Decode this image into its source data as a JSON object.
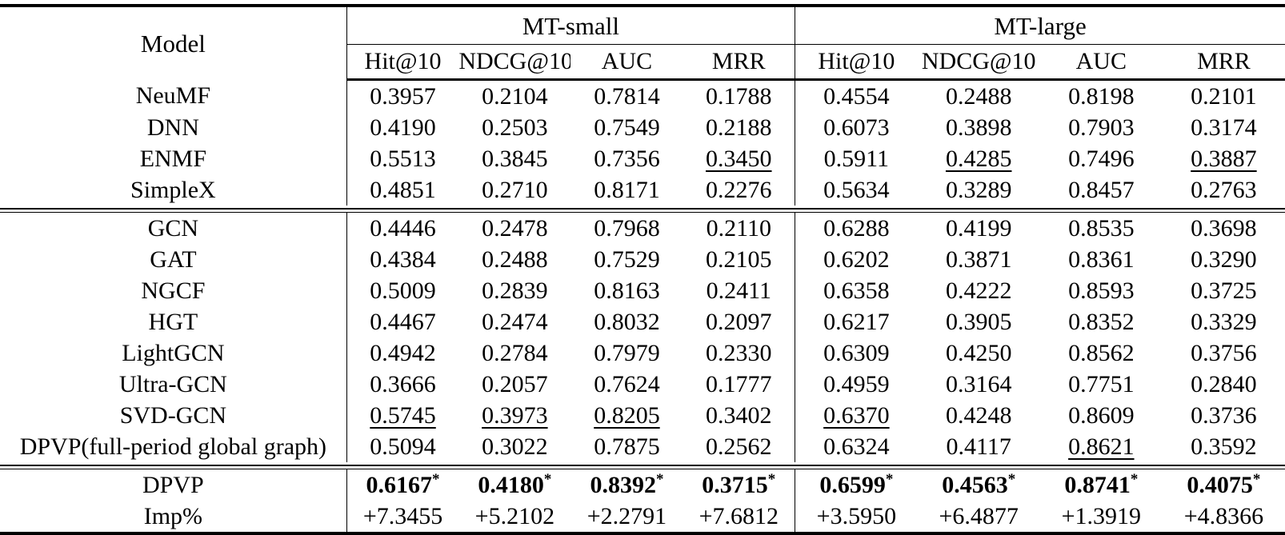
{
  "table": {
    "model_header": "Model",
    "star": "*",
    "groups": [
      {
        "label": "MT-small",
        "metrics": [
          "Hit@10",
          "NDCG@10",
          "AUC",
          "MRR"
        ]
      },
      {
        "label": "MT-large",
        "metrics": [
          "Hit@10",
          "NDCG@10",
          "AUC",
          "MRR"
        ]
      }
    ],
    "sections": [
      {
        "rows": [
          {
            "model": "NeuMF",
            "values": [
              "0.3957",
              "0.2104",
              "0.7814",
              "0.1788",
              "0.4554",
              "0.2488",
              "0.8198",
              "0.2101"
            ],
            "underline": [],
            "bold": false,
            "star": false
          },
          {
            "model": "DNN",
            "values": [
              "0.4190",
              "0.2503",
              "0.7549",
              "0.2188",
              "0.6073",
              "0.3898",
              "0.7903",
              "0.3174"
            ],
            "underline": [],
            "bold": false,
            "star": false
          },
          {
            "model": "ENMF",
            "values": [
              "0.5513",
              "0.3845",
              "0.7356",
              "0.3450",
              "0.5911",
              "0.4285",
              "0.7496",
              "0.3887"
            ],
            "underline": [
              3,
              5,
              7
            ],
            "bold": false,
            "star": false
          },
          {
            "model": "SimpleX",
            "values": [
              "0.4851",
              "0.2710",
              "0.8171",
              "0.2276",
              "0.5634",
              "0.3289",
              "0.8457",
              "0.2763"
            ],
            "underline": [],
            "bold": false,
            "star": false
          }
        ]
      },
      {
        "rows": [
          {
            "model": "GCN",
            "values": [
              "0.4446",
              "0.2478",
              "0.7968",
              "0.2110",
              "0.6288",
              "0.4199",
              "0.8535",
              "0.3698"
            ],
            "underline": [],
            "bold": false,
            "star": false
          },
          {
            "model": "GAT",
            "values": [
              "0.4384",
              "0.2488",
              "0.7529",
              "0.2105",
              "0.6202",
              "0.3871",
              "0.8361",
              "0.3290"
            ],
            "underline": [],
            "bold": false,
            "star": false
          },
          {
            "model": "NGCF",
            "values": [
              "0.5009",
              "0.2839",
              "0.8163",
              "0.2411",
              "0.6358",
              "0.4222",
              "0.8593",
              "0.3725"
            ],
            "underline": [],
            "bold": false,
            "star": false
          },
          {
            "model": "HGT",
            "values": [
              "0.4467",
              "0.2474",
              "0.8032",
              "0.2097",
              "0.6217",
              "0.3905",
              "0.8352",
              "0.3329"
            ],
            "underline": [],
            "bold": false,
            "star": false
          },
          {
            "model": "LightGCN",
            "values": [
              "0.4942",
              "0.2784",
              "0.7979",
              "0.2330",
              "0.6309",
              "0.4250",
              "0.8562",
              "0.3756"
            ],
            "underline": [],
            "bold": false,
            "star": false
          },
          {
            "model": "Ultra-GCN",
            "values": [
              "0.3666",
              "0.2057",
              "0.7624",
              "0.1777",
              "0.4959",
              "0.3164",
              "0.7751",
              "0.2840"
            ],
            "underline": [],
            "bold": false,
            "star": false
          },
          {
            "model": "SVD-GCN",
            "values": [
              "0.5745",
              "0.3973",
              "0.8205",
              "0.3402",
              "0.6370",
              "0.4248",
              "0.8609",
              "0.3736"
            ],
            "underline": [
              0,
              1,
              2,
              4
            ],
            "bold": false,
            "star": false
          },
          {
            "model": "DPVP(full-period global graph)",
            "values": [
              "0.5094",
              "0.3022",
              "0.7875",
              "0.2562",
              "0.6324",
              "0.4117",
              "0.8621",
              "0.3592"
            ],
            "underline": [
              6
            ],
            "bold": false,
            "star": false
          }
        ]
      },
      {
        "rows": [
          {
            "model": "DPVP",
            "values": [
              "0.6167",
              "0.4180",
              "0.8392",
              "0.3715",
              "0.6599",
              "0.4563",
              "0.8741",
              "0.4075"
            ],
            "underline": [],
            "bold": true,
            "star": true
          },
          {
            "model": "Imp%",
            "values": [
              "+7.3455",
              "+5.2102",
              "+2.2791",
              "+7.6812",
              "+3.5950",
              "+6.4877",
              "+1.3919",
              "+4.8366"
            ],
            "underline": [],
            "bold": false,
            "star": false
          }
        ]
      }
    ]
  }
}
